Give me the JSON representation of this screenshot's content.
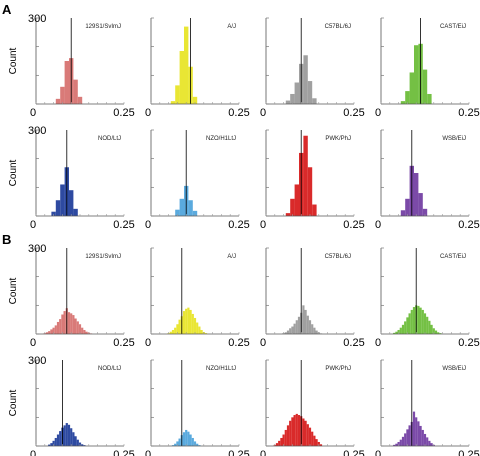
{
  "figure": {
    "panels": [
      {
        "label": "A",
        "row_ids": [
          "A1",
          "A2"
        ]
      },
      {
        "label": "B",
        "row_ids": [
          "B1",
          "B2"
        ]
      }
    ],
    "axis": {
      "ylabel": "Count",
      "y_tick_top": "300",
      "x_tick_left": "0",
      "x_tick_right": "0.25"
    }
  },
  "chart_data": [
    {
      "id": "A1-129S1",
      "panel": "A",
      "type": "bar",
      "strain": "129S1/SvImJ",
      "color": "#d97a78",
      "xlim": [
        0,
        0.25
      ],
      "ylim": [
        0,
        300
      ],
      "bin_width": 0.0125,
      "x": [
        0.0625,
        0.075,
        0.0875,
        0.1,
        0.1125,
        0.125
      ],
      "values": [
        18,
        60,
        150,
        160,
        85,
        25
      ],
      "vline": 0.1
    },
    {
      "id": "A1-AJ",
      "panel": "A",
      "type": "bar",
      "strain": "A/J",
      "color": "#e9e634",
      "xlim": [
        0,
        0.25
      ],
      "ylim": [
        0,
        300
      ],
      "bin_width": 0.0125,
      "x": [
        0.0625,
        0.075,
        0.0875,
        0.1,
        0.1125,
        0.125
      ],
      "values": [
        10,
        65,
        185,
        270,
        130,
        25
      ],
      "vline": 0.1125
    },
    {
      "id": "A1-C57",
      "panel": "A",
      "type": "bar",
      "strain": "C57BL/6J",
      "color": "#a0a0a0",
      "xlim": [
        0,
        0.25
      ],
      "ylim": [
        0,
        300
      ],
      "bin_width": 0.0125,
      "x": [
        0.0625,
        0.075,
        0.0875,
        0.1,
        0.1125,
        0.125,
        0.1375
      ],
      "values": [
        12,
        35,
        75,
        140,
        170,
        80,
        20
      ],
      "vline": 0.1
    },
    {
      "id": "A1-CAST",
      "panel": "A",
      "type": "bar",
      "strain": "CAST/EiJ",
      "color": "#74c044",
      "xlim": [
        0,
        0.25
      ],
      "ylim": [
        0,
        300
      ],
      "bin_width": 0.0125,
      "x": [
        0.0625,
        0.075,
        0.0875,
        0.1,
        0.1125,
        0.125,
        0.1375
      ],
      "values": [
        10,
        45,
        110,
        205,
        210,
        120,
        35
      ],
      "vline": 0.1125
    },
    {
      "id": "A2-NOD",
      "panel": "A",
      "type": "bar",
      "strain": "NOD/LtJ",
      "color": "#2e4aa1",
      "xlim": [
        0,
        0.25
      ],
      "ylim": [
        0,
        300
      ],
      "bin_width": 0.0125,
      "x": [
        0.05,
        0.0625,
        0.075,
        0.0875,
        0.1,
        0.1125
      ],
      "values": [
        15,
        55,
        110,
        170,
        90,
        25
      ],
      "vline": 0.0875
    },
    {
      "id": "A2-NZO",
      "panel": "A",
      "type": "bar",
      "strain": "NZO/H1LtJ",
      "color": "#5aaade",
      "xlim": [
        0,
        0.25
      ],
      "ylim": [
        0,
        300
      ],
      "bin_width": 0.0125,
      "x": [
        0.075,
        0.0875,
        0.1,
        0.1125,
        0.125
      ],
      "values": [
        22,
        60,
        105,
        55,
        18
      ],
      "vline": 0.1
    },
    {
      "id": "A2-PWK",
      "panel": "A",
      "type": "bar",
      "strain": "PWK/PhJ",
      "color": "#d92a2a",
      "xlim": [
        0,
        0.25
      ],
      "ylim": [
        0,
        300
      ],
      "bin_width": 0.0125,
      "x": [
        0.0625,
        0.075,
        0.0875,
        0.1,
        0.1125,
        0.125,
        0.1375
      ],
      "values": [
        10,
        60,
        110,
        220,
        280,
        170,
        40
      ],
      "vline": 0.1
    },
    {
      "id": "A2-WSB",
      "panel": "A",
      "type": "bar",
      "strain": "WSB/EiJ",
      "color": "#7b4aa8",
      "xlim": [
        0,
        0.25
      ],
      "ylim": [
        0,
        300
      ],
      "bin_width": 0.0125,
      "x": [
        0.0625,
        0.075,
        0.0875,
        0.1,
        0.1125,
        0.125
      ],
      "values": [
        20,
        60,
        175,
        150,
        80,
        25
      ],
      "vline": 0.0875
    },
    {
      "id": "B1-129S1",
      "panel": "B",
      "type": "bar",
      "strain": "129S1/SvImJ",
      "color": "#d97a78",
      "xlim": [
        0,
        0.25
      ],
      "ylim": [
        0,
        300
      ],
      "bin_width": 0.00625,
      "x": [
        0.025,
        0.03125,
        0.0375,
        0.04375,
        0.05,
        0.05625,
        0.0625,
        0.06875,
        0.075,
        0.08125,
        0.0875,
        0.09375,
        0.1,
        0.10625,
        0.1125,
        0.11875,
        0.125,
        0.13125,
        0.1375,
        0.14375,
        0.15,
        0.15625
      ],
      "values": [
        3,
        6,
        10,
        16,
        22,
        30,
        42,
        52,
        68,
        80,
        90,
        76,
        72,
        66,
        54,
        44,
        34,
        22,
        14,
        8,
        5,
        2
      ],
      "vline": 0.0875
    },
    {
      "id": "B1-AJ",
      "panel": "B",
      "type": "bar",
      "strain": "A/J",
      "color": "#e9e634",
      "xlim": [
        0,
        0.25
      ],
      "ylim": [
        0,
        300
      ],
      "bin_width": 0.00625,
      "x": [
        0.05,
        0.05625,
        0.0625,
        0.06875,
        0.075,
        0.08125,
        0.0875,
        0.09375,
        0.1,
        0.10625,
        0.1125,
        0.11875,
        0.125,
        0.13125,
        0.1375,
        0.14375,
        0.15,
        0.15625
      ],
      "values": [
        3,
        8,
        14,
        22,
        34,
        50,
        62,
        80,
        88,
        92,
        84,
        70,
        56,
        40,
        26,
        14,
        7,
        3
      ],
      "vline": 0.0875
    },
    {
      "id": "B1-C57",
      "panel": "B",
      "type": "bar",
      "strain": "C57BL/6J",
      "color": "#a0a0a0",
      "xlim": [
        0,
        0.25
      ],
      "ylim": [
        0,
        300
      ],
      "bin_width": 0.00625,
      "x": [
        0.05,
        0.05625,
        0.0625,
        0.06875,
        0.075,
        0.08125,
        0.0875,
        0.09375,
        0.1,
        0.10625,
        0.1125,
        0.11875,
        0.125,
        0.13125,
        0.1375,
        0.14375,
        0.15,
        0.15625
      ],
      "values": [
        3,
        6,
        12,
        20,
        26,
        36,
        48,
        60,
        74,
        100,
        84,
        64,
        48,
        34,
        22,
        12,
        6,
        2
      ],
      "vline": 0.1
    },
    {
      "id": "B1-CAST",
      "panel": "B",
      "type": "bar",
      "strain": "CAST/EiJ",
      "color": "#74c044",
      "xlim": [
        0,
        0.25
      ],
      "ylim": [
        0,
        300
      ],
      "bin_width": 0.00625,
      "x": [
        0.0375,
        0.04375,
        0.05,
        0.05625,
        0.0625,
        0.06875,
        0.075,
        0.08125,
        0.0875,
        0.09375,
        0.1,
        0.10625,
        0.1125,
        0.11875,
        0.125,
        0.13125,
        0.1375,
        0.14375,
        0.15,
        0.15625,
        0.1625,
        0.16875
      ],
      "values": [
        4,
        8,
        14,
        22,
        32,
        44,
        58,
        72,
        84,
        94,
        100,
        98,
        92,
        84,
        72,
        60,
        46,
        32,
        20,
        12,
        6,
        3
      ],
      "vline": 0.1
    },
    {
      "id": "B2-NOD",
      "panel": "B",
      "type": "bar",
      "strain": "NOD/LtJ",
      "color": "#2e4aa1",
      "xlim": [
        0,
        0.25
      ],
      "ylim": [
        0,
        300
      ],
      "bin_width": 0.00625,
      "x": [
        0.0375,
        0.04375,
        0.05,
        0.05625,
        0.0625,
        0.06875,
        0.075,
        0.08125,
        0.0875,
        0.09375,
        0.1,
        0.10625,
        0.1125,
        0.11875,
        0.125,
        0.13125,
        0.1375
      ],
      "values": [
        5,
        10,
        18,
        28,
        40,
        52,
        64,
        72,
        80,
        74,
        62,
        48,
        34,
        22,
        12,
        6,
        3
      ],
      "vline": 0.075
    },
    {
      "id": "B2-NZO",
      "panel": "B",
      "type": "bar",
      "strain": "NZO/H1LtJ",
      "color": "#5aaade",
      "xlim": [
        0,
        0.25
      ],
      "ylim": [
        0,
        300
      ],
      "bin_width": 0.00625,
      "x": [
        0.0625,
        0.06875,
        0.075,
        0.08125,
        0.0875,
        0.09375,
        0.1,
        0.10625,
        0.1125,
        0.11875,
        0.125,
        0.13125,
        0.1375
      ],
      "values": [
        3,
        8,
        16,
        26,
        38,
        48,
        56,
        50,
        40,
        28,
        16,
        8,
        3
      ],
      "vline": 0.0875
    },
    {
      "id": "B2-PWK",
      "panel": "B",
      "type": "bar",
      "strain": "PWK/PhJ",
      "color": "#d92a2a",
      "xlim": [
        0,
        0.25
      ],
      "ylim": [
        0,
        300
      ],
      "bin_width": 0.00625,
      "x": [
        0.025,
        0.03125,
        0.0375,
        0.04375,
        0.05,
        0.05625,
        0.0625,
        0.06875,
        0.075,
        0.08125,
        0.0875,
        0.09375,
        0.1,
        0.10625,
        0.1125,
        0.11875,
        0.125,
        0.13125,
        0.1375,
        0.14375,
        0.15,
        0.15625
      ],
      "values": [
        4,
        10,
        18,
        28,
        40,
        56,
        72,
        88,
        100,
        108,
        112,
        108,
        104,
        96,
        88,
        76,
        64,
        50,
        36,
        24,
        14,
        6
      ],
      "vline": 0.1
    },
    {
      "id": "B2-WSB",
      "panel": "B",
      "type": "bar",
      "strain": "WSB/EiJ",
      "color": "#7b4aa8",
      "xlim": [
        0,
        0.25
      ],
      "ylim": [
        0,
        300
      ],
      "bin_width": 0.00625,
      "x": [
        0.0375,
        0.04375,
        0.05,
        0.05625,
        0.0625,
        0.06875,
        0.075,
        0.08125,
        0.0875,
        0.09375,
        0.1,
        0.10625,
        0.1125,
        0.11875,
        0.125,
        0.13125,
        0.1375,
        0.14375,
        0.15
      ],
      "values": [
        4,
        8,
        14,
        22,
        32,
        44,
        58,
        72,
        84,
        120,
        100,
        86,
        70,
        56,
        42,
        30,
        18,
        10,
        4
      ],
      "vline": 0.0875
    }
  ]
}
